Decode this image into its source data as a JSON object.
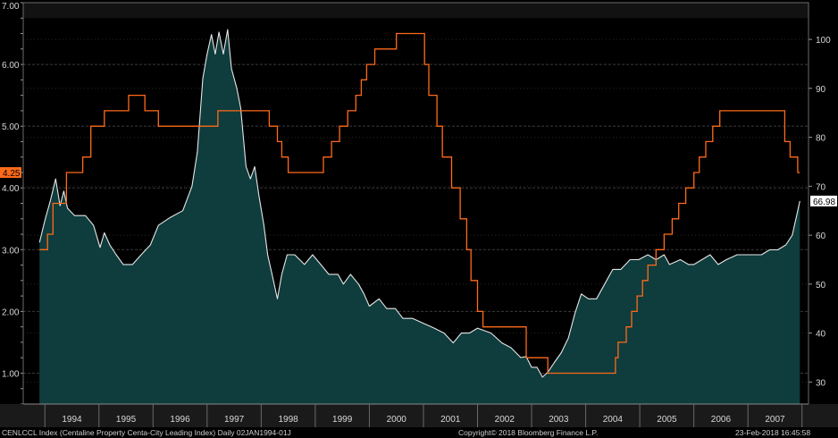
{
  "chart_data": {
    "type": "line",
    "title": "",
    "x_labels": [
      "1994",
      "1995",
      "1996",
      "1997",
      "1998",
      "1999",
      "2000",
      "2001",
      "2002",
      "2003",
      "2004",
      "2005",
      "2006",
      "2007"
    ],
    "left_axis": {
      "ticks": [
        "1.00",
        "2.00",
        "3.00",
        "4.00",
        "5.00",
        "6.00",
        "7.00"
      ],
      "range": [
        0.5,
        7.0
      ]
    },
    "right_axis": {
      "ticks": [
        "30",
        "40",
        "50",
        "60",
        "70",
        "80",
        "90",
        "100"
      ],
      "range": [
        25.5,
        107.5
      ]
    },
    "grid": "horizontal dashed",
    "series": [
      {
        "axis": "left",
        "color": "#ff6a1a",
        "style": "step",
        "last_value_label": "4.25",
        "points": [
          [
            1993.9,
            3.0
          ],
          [
            1994.05,
            3.25
          ],
          [
            1994.15,
            3.75
          ],
          [
            1994.4,
            4.25
          ],
          [
            1994.7,
            4.5
          ],
          [
            1994.85,
            5.0
          ],
          [
            1995.1,
            5.25
          ],
          [
            1995.55,
            5.5
          ],
          [
            1995.85,
            5.25
          ],
          [
            1996.1,
            5.0
          ],
          [
            1997.2,
            5.25
          ],
          [
            1998.15,
            5.0
          ],
          [
            1998.3,
            4.75
          ],
          [
            1998.38,
            4.5
          ],
          [
            1998.5,
            4.25
          ],
          [
            1999.15,
            4.5
          ],
          [
            1999.3,
            4.75
          ],
          [
            1999.45,
            5.0
          ],
          [
            1999.6,
            5.25
          ],
          [
            1999.75,
            5.5
          ],
          [
            1999.85,
            5.75
          ],
          [
            1999.95,
            6.0
          ],
          [
            2000.1,
            6.25
          ],
          [
            2000.5,
            6.5
          ],
          [
            2001.02,
            6.0
          ],
          [
            2001.1,
            5.5
          ],
          [
            2001.25,
            5.0
          ],
          [
            2001.35,
            4.5
          ],
          [
            2001.52,
            4.0
          ],
          [
            2001.68,
            3.5
          ],
          [
            2001.8,
            3.0
          ],
          [
            2001.88,
            2.5
          ],
          [
            2002.0,
            2.0
          ],
          [
            2002.1,
            1.75
          ],
          [
            2002.3,
            1.75
          ],
          [
            2002.9,
            1.25
          ],
          [
            2003.3,
            1.0
          ],
          [
            2003.45,
            1.0
          ],
          [
            2004.45,
            1.0
          ],
          [
            2004.55,
            1.25
          ],
          [
            2004.6,
            1.5
          ],
          [
            2004.75,
            1.75
          ],
          [
            2004.85,
            2.0
          ],
          [
            2004.95,
            2.25
          ],
          [
            2005.05,
            2.5
          ],
          [
            2005.15,
            2.75
          ],
          [
            2005.3,
            3.0
          ],
          [
            2005.45,
            3.25
          ],
          [
            2005.6,
            3.5
          ],
          [
            2005.72,
            3.75
          ],
          [
            2005.85,
            4.0
          ],
          [
            2006.0,
            4.25
          ],
          [
            2006.1,
            4.5
          ],
          [
            2006.22,
            4.75
          ],
          [
            2006.35,
            5.0
          ],
          [
            2006.48,
            5.25
          ],
          [
            2007.6,
            5.25
          ],
          [
            2007.68,
            4.75
          ],
          [
            2007.78,
            4.5
          ],
          [
            2007.92,
            4.25
          ],
          [
            2007.96,
            4.25
          ]
        ]
      },
      {
        "axis": "right",
        "color": "#e6e6e6",
        "fill": "#0f3c3c",
        "style": "area",
        "last_value_label": "66.98",
        "points": [
          [
            1993.9,
            58.5
          ],
          [
            1994.0,
            63
          ],
          [
            1994.1,
            67
          ],
          [
            1994.2,
            71.5
          ],
          [
            1994.28,
            66
          ],
          [
            1994.35,
            69
          ],
          [
            1994.42,
            65.5
          ],
          [
            1994.55,
            64
          ],
          [
            1994.75,
            64
          ],
          [
            1994.9,
            62
          ],
          [
            1995.02,
            57.5
          ],
          [
            1995.1,
            60.5
          ],
          [
            1995.2,
            58
          ],
          [
            1995.32,
            56
          ],
          [
            1995.45,
            54
          ],
          [
            1995.62,
            54
          ],
          [
            1995.78,
            56
          ],
          [
            1995.95,
            58
          ],
          [
            1996.1,
            62
          ],
          [
            1996.3,
            63.5
          ],
          [
            1996.55,
            65
          ],
          [
            1996.72,
            70
          ],
          [
            1996.82,
            77
          ],
          [
            1996.92,
            92
          ],
          [
            1997.0,
            97
          ],
          [
            1997.08,
            101
          ],
          [
            1997.15,
            97
          ],
          [
            1997.22,
            101.5
          ],
          [
            1997.3,
            97
          ],
          [
            1997.38,
            102
          ],
          [
            1997.45,
            94
          ],
          [
            1997.55,
            90
          ],
          [
            1997.62,
            86
          ],
          [
            1997.72,
            74
          ],
          [
            1997.8,
            71.5
          ],
          [
            1997.88,
            74
          ],
          [
            1997.96,
            68
          ],
          [
            1998.05,
            62
          ],
          [
            1998.12,
            56
          ],
          [
            1998.2,
            52
          ],
          [
            1998.3,
            47
          ],
          [
            1998.38,
            52
          ],
          [
            1998.48,
            56
          ],
          [
            1998.62,
            56
          ],
          [
            1998.8,
            54
          ],
          [
            1998.95,
            56
          ],
          [
            1999.1,
            54
          ],
          [
            1999.25,
            52
          ],
          [
            1999.42,
            52
          ],
          [
            1999.52,
            50
          ],
          [
            1999.65,
            52
          ],
          [
            1999.8,
            50
          ],
          [
            1999.9,
            48
          ],
          [
            2000.0,
            45.5
          ],
          [
            2000.18,
            47
          ],
          [
            2000.32,
            45
          ],
          [
            2000.48,
            45
          ],
          [
            2000.62,
            43
          ],
          [
            2000.8,
            43
          ],
          [
            2001.0,
            42
          ],
          [
            2001.2,
            41
          ],
          [
            2001.38,
            40
          ],
          [
            2001.55,
            38
          ],
          [
            2001.7,
            40
          ],
          [
            2001.85,
            40
          ],
          [
            2002.0,
            41
          ],
          [
            2002.25,
            40
          ],
          [
            2002.45,
            38
          ],
          [
            2002.62,
            37
          ],
          [
            2002.8,
            35
          ],
          [
            2002.9,
            35.2
          ],
          [
            2003.0,
            33
          ],
          [
            2003.1,
            33
          ],
          [
            2003.2,
            31
          ],
          [
            2003.3,
            32
          ],
          [
            2003.42,
            34
          ],
          [
            2003.55,
            36
          ],
          [
            2003.68,
            39
          ],
          [
            2003.8,
            44
          ],
          [
            2003.92,
            48
          ],
          [
            2004.05,
            47
          ],
          [
            2004.2,
            47
          ],
          [
            2004.35,
            50
          ],
          [
            2004.5,
            53
          ],
          [
            2004.65,
            53
          ],
          [
            2004.82,
            55
          ],
          [
            2004.98,
            55
          ],
          [
            2005.15,
            56
          ],
          [
            2005.3,
            55
          ],
          [
            2005.45,
            56
          ],
          [
            2005.55,
            54
          ],
          [
            2005.75,
            55
          ],
          [
            2005.9,
            54
          ],
          [
            2006.0,
            54
          ],
          [
            2006.15,
            55
          ],
          [
            2006.3,
            56
          ],
          [
            2006.45,
            54
          ],
          [
            2006.6,
            55
          ],
          [
            2006.8,
            56
          ],
          [
            2006.95,
            56
          ],
          [
            2007.1,
            56
          ],
          [
            2007.25,
            56
          ],
          [
            2007.4,
            57
          ],
          [
            2007.55,
            57
          ],
          [
            2007.7,
            58
          ],
          [
            2007.82,
            60
          ],
          [
            2007.9,
            64
          ],
          [
            2007.96,
            66.98
          ]
        ]
      }
    ]
  },
  "footer": {
    "index_text": "CENLCCL Index (Centaline Property Centa-City Leading Index)  Daily 02JAN1994-01J",
    "copyright": "Copyright© 2018 Bloomberg Finance L.P.",
    "timestamp": "23-Feb-2018 16:45:58"
  }
}
